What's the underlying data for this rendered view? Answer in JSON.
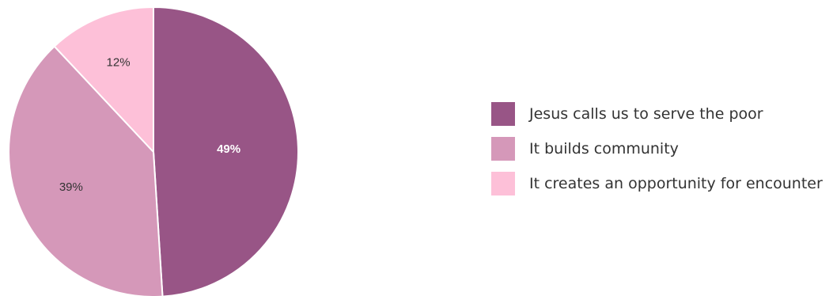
{
  "chart_data": {
    "type": "pie",
    "title": "",
    "slices": [
      {
        "label": "Jesus calls us to serve the poor",
        "value": 49,
        "display": "49%",
        "color": "#985586",
        "label_color": "#ffffff"
      },
      {
        "label": "It builds community",
        "value": 39,
        "display": "39%",
        "color": "#d598b9",
        "label_color": "#333333"
      },
      {
        "label": "It creates an opportunity for encounter",
        "value": 12,
        "display": "12%",
        "color": "#fdc0d8",
        "label_color": "#333333"
      }
    ],
    "legend_position": "right"
  }
}
